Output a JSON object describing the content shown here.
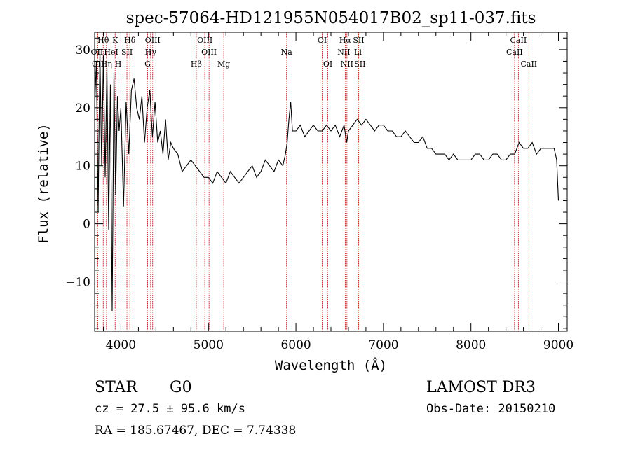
{
  "chart_data": {
    "type": "line",
    "title": "spec-57064-HD121955N054017B02_sp11-037.fits",
    "xlabel": "Wavelength (Å)",
    "ylabel": "Flux (relative)",
    "xlim": [
      3700,
      9100
    ],
    "ylim": [
      -18.5,
      33
    ],
    "x_ticks": [
      4000,
      5000,
      6000,
      7000,
      8000,
      9000
    ],
    "x_tick_labels": [
      "4000",
      "5000",
      "6000",
      "7000",
      "8000",
      "9000"
    ],
    "y_ticks": [
      -10,
      0,
      10,
      20,
      30
    ],
    "y_tick_labels": [
      "−10",
      "0",
      "10",
      "20",
      "30"
    ],
    "spectrum": {
      "name": "flux",
      "x": [
        3700,
        3720,
        3740,
        3760,
        3780,
        3800,
        3820,
        3840,
        3860,
        3880,
        3900,
        3920,
        3940,
        3960,
        3980,
        4000,
        4030,
        4060,
        4090,
        4120,
        4150,
        4180,
        4210,
        4240,
        4270,
        4300,
        4330,
        4360,
        4390,
        4420,
        4450,
        4480,
        4510,
        4540,
        4570,
        4600,
        4650,
        4700,
        4750,
        4800,
        4850,
        4900,
        4950,
        5000,
        5050,
        5100,
        5150,
        5200,
        5250,
        5300,
        5350,
        5400,
        5450,
        5500,
        5550,
        5600,
        5650,
        5700,
        5750,
        5800,
        5850,
        5880,
        5900,
        5920,
        5940,
        5960,
        6000,
        6050,
        6100,
        6150,
        6200,
        6250,
        6300,
        6350,
        6400,
        6450,
        6500,
        6550,
        6580,
        6600,
        6650,
        6700,
        6750,
        6800,
        6850,
        6900,
        6950,
        7000,
        7050,
        7100,
        7150,
        7200,
        7250,
        7300,
        7350,
        7400,
        7450,
        7500,
        7550,
        7600,
        7650,
        7700,
        7750,
        7800,
        7850,
        7900,
        7950,
        8000,
        8050,
        8100,
        8150,
        8200,
        8250,
        8300,
        8350,
        8400,
        8450,
        8500,
        8550,
        8600,
        8650,
        8700,
        8750,
        8800,
        8850,
        8900,
        8950,
        8980,
        9000
      ],
      "y": [
        20,
        28,
        2,
        30,
        10,
        29,
        8,
        27,
        -1,
        24,
        -15,
        26,
        5,
        22,
        16,
        20,
        3,
        21,
        12,
        23,
        25,
        20,
        18,
        22,
        14,
        20,
        23,
        15,
        21,
        14,
        16,
        12,
        18,
        11,
        14,
        13,
        12,
        9,
        10,
        11,
        10,
        9,
        8,
        8,
        7,
        9,
        8,
        7,
        9,
        8,
        7,
        8,
        9,
        10,
        8,
        9,
        11,
        10,
        9,
        11,
        10,
        12,
        14,
        18,
        21,
        16,
        16,
        17,
        15,
        16,
        17,
        16,
        16,
        17,
        16,
        17,
        15,
        17,
        14,
        16,
        17,
        18,
        17,
        18,
        17,
        16,
        17,
        17,
        16,
        16,
        15,
        15,
        16,
        15,
        14,
        14,
        15,
        13,
        13,
        12,
        12,
        12,
        11,
        12,
        11,
        11,
        11,
        11,
        12,
        12,
        11,
        11,
        12,
        12,
        11,
        11,
        12,
        12,
        14,
        13,
        13,
        14,
        12,
        13,
        13,
        13,
        13,
        11,
        4
      ]
    },
    "line_markers": [
      {
        "label": "Hθ",
        "wavelength": 3798,
        "row": 0
      },
      {
        "label": "OII",
        "wavelength": 3727,
        "row": 1
      },
      {
        "label": "CII",
        "wavelength": 3736,
        "row": 2
      },
      {
        "label": "Hη",
        "wavelength": 3835,
        "row": 2
      },
      {
        "label": "K",
        "wavelength": 3934,
        "row": 0
      },
      {
        "label": "HeI",
        "wavelength": 3889,
        "row": 1
      },
      {
        "label": "H",
        "wavelength": 3969,
        "row": 2
      },
      {
        "label": "SII",
        "wavelength": 4069,
        "row": 1
      },
      {
        "label": "Hδ",
        "wavelength": 4102,
        "row": 0
      },
      {
        "label": "OIII",
        "wavelength": 4363,
        "row": 0
      },
      {
        "label": "Hγ",
        "wavelength": 4340,
        "row": 1
      },
      {
        "label": "G",
        "wavelength": 4305,
        "row": 2
      },
      {
        "label": "Hβ",
        "wavelength": 4861,
        "row": 2
      },
      {
        "label": "OIII",
        "wavelength": 4959,
        "row": 0
      },
      {
        "label": "OIII",
        "wavelength": 5007,
        "row": 1
      },
      {
        "label": "Mg",
        "wavelength": 5175,
        "row": 2
      },
      {
        "label": "Na",
        "wavelength": 5893,
        "row": 1
      },
      {
        "label": "OI",
        "wavelength": 6300,
        "row": 0
      },
      {
        "label": "OI",
        "wavelength": 6364,
        "row": 2
      },
      {
        "label": "Hα",
        "wavelength": 6563,
        "row": 0
      },
      {
        "label": "NII",
        "wavelength": 6548,
        "row": 1
      },
      {
        "label": "NII",
        "wavelength": 6583,
        "row": 2
      },
      {
        "label": "SII",
        "wavelength": 6716,
        "row": 0
      },
      {
        "label": "Li",
        "wavelength": 6708,
        "row": 1
      },
      {
        "label": "SII",
        "wavelength": 6731,
        "row": 2
      },
      {
        "label": "CaII",
        "wavelength": 8542,
        "row": 0
      },
      {
        "label": "CaII",
        "wavelength": 8498,
        "row": 1
      },
      {
        "label": "CaII",
        "wavelength": 8662,
        "row": 2
      }
    ],
    "line_color": "#000000",
    "marker_color": "#c00000",
    "grid": false
  },
  "info": {
    "class": "STAR",
    "subclass": "G0",
    "survey": "LAMOST DR3",
    "cz": "cz = 27.5 ± 95.6 km/s",
    "obs_date": "Obs-Date: 20150210",
    "coords": "RA = 185.67467, DEC =   7.74338"
  }
}
